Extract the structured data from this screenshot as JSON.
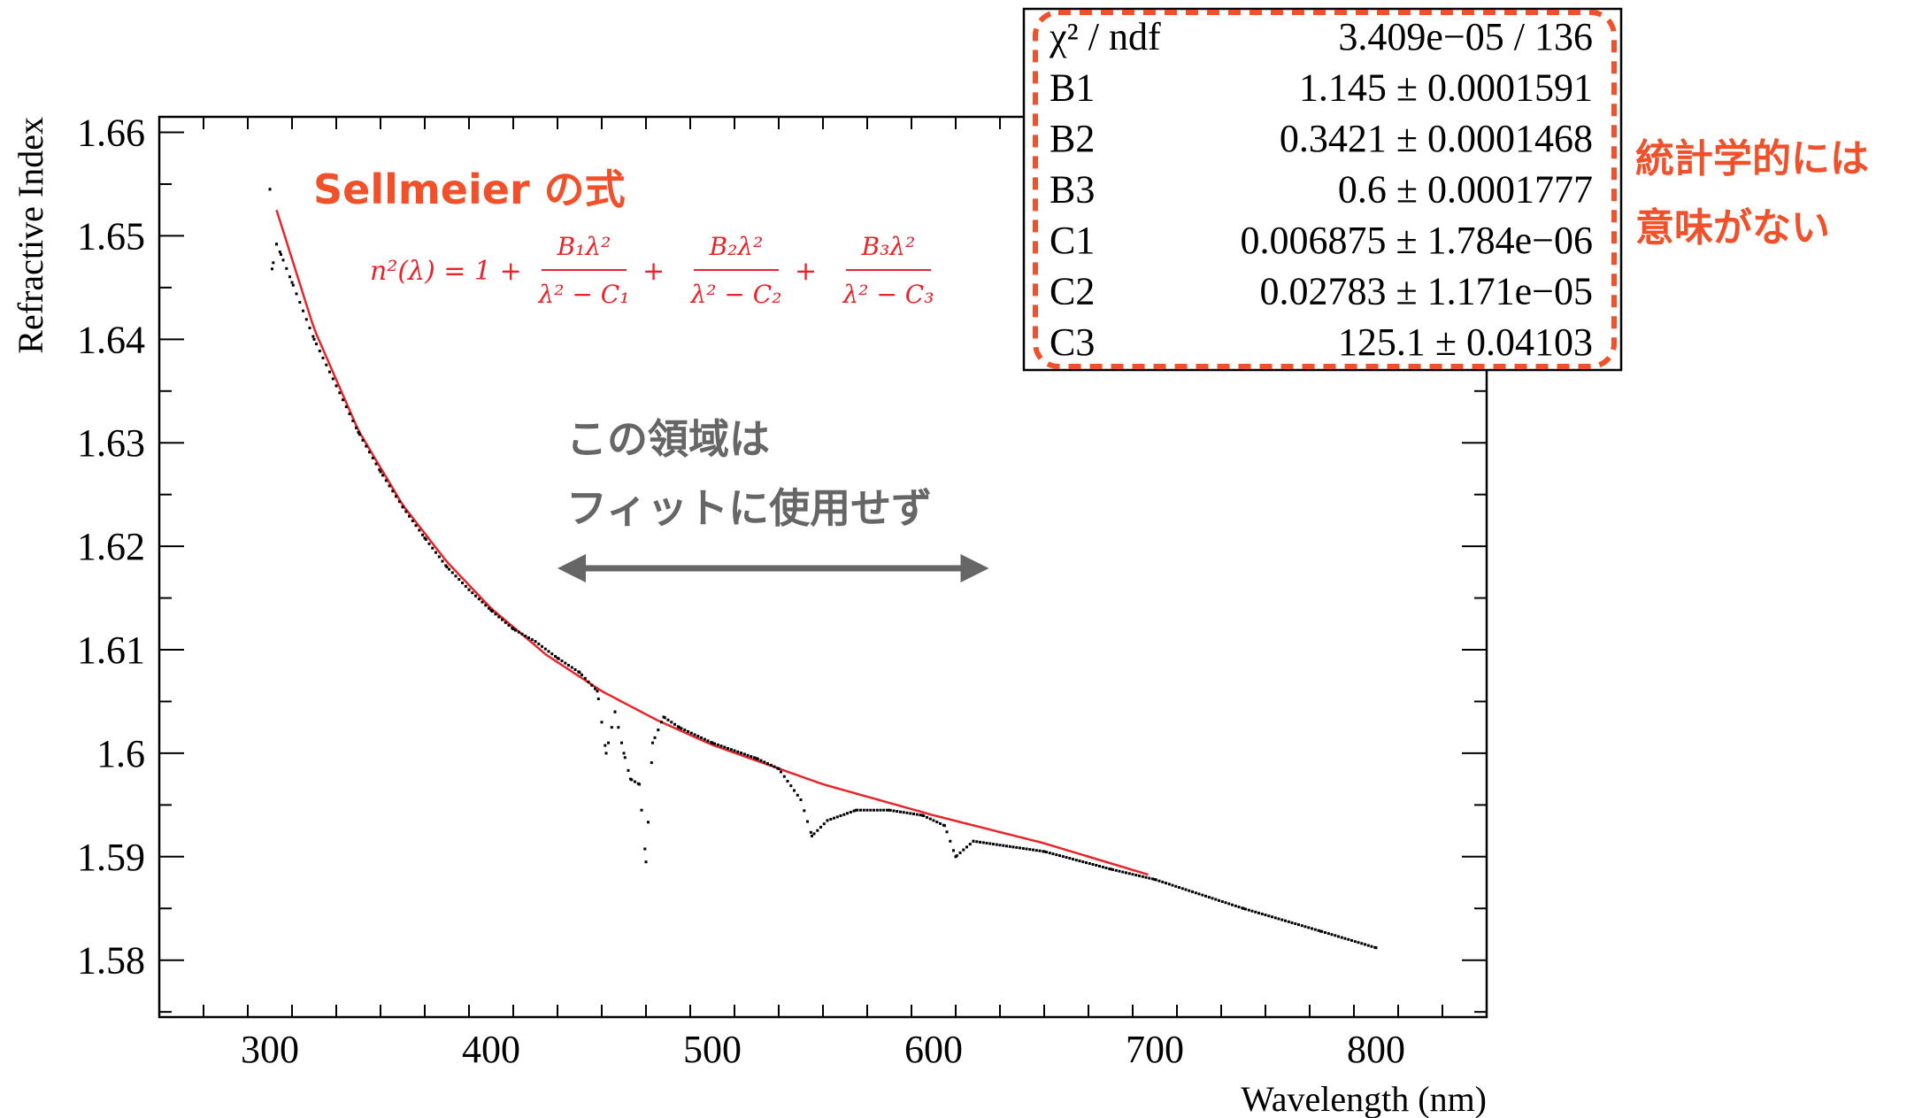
{
  "chart_data": {
    "type": "scatter",
    "xlabel": "Wavelength (nm)",
    "ylabel": "Refractive Index",
    "xlim": [
      250,
      850
    ],
    "ylim": [
      1.5745,
      1.6615
    ],
    "xticks": [
      300,
      400,
      500,
      600,
      700,
      800
    ],
    "xtick_labels": [
      "300",
      "400",
      "500",
      "600",
      "700",
      "800"
    ],
    "yticks": [
      1.58,
      1.59,
      1.6,
      1.61,
      1.62,
      1.63,
      1.64,
      1.65,
      1.66
    ],
    "ytick_labels": [
      "1.58",
      "1.59",
      "1.6",
      "1.61",
      "1.62",
      "1.63",
      "1.64",
      "1.65",
      "1.66"
    ],
    "grid": false,
    "series": [
      {
        "kind": "points",
        "color": "#000000",
        "anchors": [
          [
            300,
            1.6545
          ],
          [
            301,
            1.6468
          ],
          [
            303,
            1.6492
          ],
          [
            305,
            1.6482
          ],
          [
            310,
            1.6455
          ],
          [
            320,
            1.64
          ],
          [
            330,
            1.6355
          ],
          [
            340,
            1.631
          ],
          [
            350,
            1.6272
          ],
          [
            360,
            1.6238
          ],
          [
            370,
            1.6208
          ],
          [
            380,
            1.618
          ],
          [
            390,
            1.6158
          ],
          [
            400,
            1.6138
          ],
          [
            410,
            1.612
          ],
          [
            420,
            1.6108
          ],
          [
            430,
            1.6092
          ],
          [
            440,
            1.6078
          ],
          [
            448,
            1.606
          ],
          [
            452,
            1.6
          ],
          [
            456,
            1.604
          ],
          [
            460,
            1.6
          ],
          [
            463,
            1.5975
          ],
          [
            467,
            1.597
          ],
          [
            470,
            1.5895
          ],
          [
            473,
            1.601
          ],
          [
            478,
            1.6035
          ],
          [
            485,
            1.6025
          ],
          [
            500,
            1.601
          ],
          [
            520,
            1.5995
          ],
          [
            530,
            1.5985
          ],
          [
            540,
            1.5955
          ],
          [
            545,
            1.592
          ],
          [
            552,
            1.5935
          ],
          [
            565,
            1.5945
          ],
          [
            580,
            1.5945
          ],
          [
            595,
            1.594
          ],
          [
            605,
            1.593
          ],
          [
            610,
            1.59
          ],
          [
            618,
            1.5915
          ],
          [
            650,
            1.5905
          ],
          [
            680,
            1.5888
          ],
          [
            700,
            1.5878
          ],
          [
            740,
            1.585
          ],
          [
            775,
            1.5828
          ],
          [
            800,
            1.5812
          ]
        ]
      },
      {
        "kind": "fit",
        "name": "Sellmeier",
        "color": "#e8242a",
        "x_range": [
          303,
          698
        ],
        "formula_params": {
          "B1": 1.145,
          "B2": 0.3421,
          "B3": 0.6,
          "C1": 0.006875,
          "C2": 0.02783,
          "C3": 125.1
        },
        "anchors": [
          [
            303,
            1.6525
          ],
          [
            320,
            1.641
          ],
          [
            340,
            1.6312
          ],
          [
            360,
            1.624
          ],
          [
            380,
            1.6185
          ],
          [
            400,
            1.614
          ],
          [
            425,
            1.6095
          ],
          [
            450,
            1.606
          ],
          [
            475,
            1.6032
          ],
          [
            500,
            1.6008
          ],
          [
            550,
            1.597
          ],
          [
            600,
            1.594
          ],
          [
            650,
            1.5913
          ],
          [
            698,
            1.5882
          ]
        ]
      }
    ],
    "stats_box": {
      "rows": [
        {
          "label": "χ² / ndf",
          "value": "3.409e−05 / 136"
        },
        {
          "label": "B1",
          "value": "1.145 ± 0.0001591"
        },
        {
          "label": "B2",
          "value": "0.3421 ± 0.0001468"
        },
        {
          "label": "B3",
          "value": "0.6 ± 0.0001777"
        },
        {
          "label": "C1",
          "value": "0.006875 ± 1.784e−06"
        },
        {
          "label": "C2",
          "value": "0.02783 ± 1.171e−05"
        },
        {
          "label": "C3",
          "value": "125.1 ± 0.04103"
        }
      ]
    },
    "annotations": {
      "sellmeier_title": "Sellmeier の式",
      "formula": {
        "lhs": "n²(λ) = 1 +",
        "terms": [
          {
            "num": "B₁λ²",
            "den": "λ² − C₁"
          },
          {
            "num": "B₂λ²",
            "den": "λ² − C₂"
          },
          {
            "num": "B₃λ²",
            "den": "λ² − C₃"
          }
        ],
        "plus": "+"
      },
      "region_note_line1": "この領域は",
      "region_note_line2": "フィットに使用せず",
      "region_arrow_x": [
        430,
        625
      ],
      "side_note_line1": "統計学的には",
      "side_note_line2": "意味がない"
    },
    "colors": {
      "fit": "#e8242a",
      "annotation_orange": "#f0502a",
      "arrow_gray": "#666666",
      "note_gray": "#666666"
    }
  }
}
